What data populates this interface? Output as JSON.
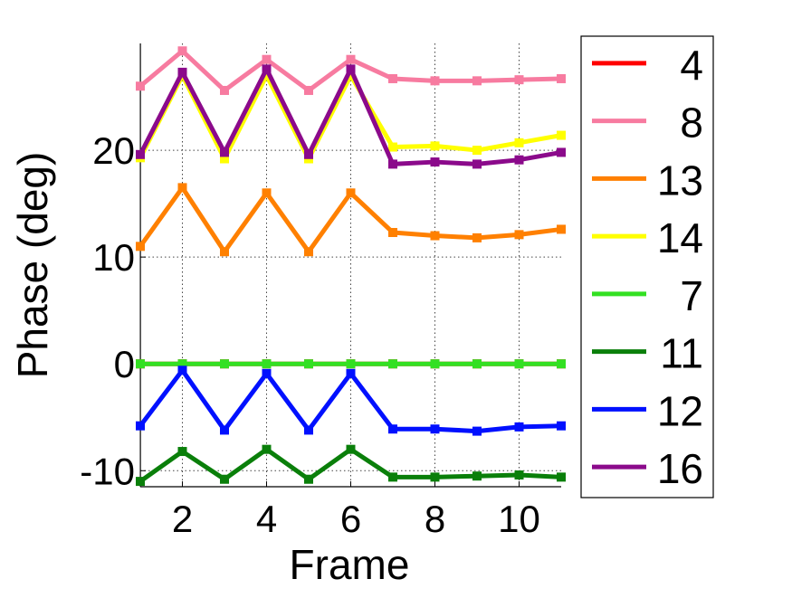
{
  "chart_data": {
    "type": "line",
    "title": "",
    "xlabel": "Frame",
    "ylabel": "Phase (deg)",
    "xlim": [
      1,
      11
    ],
    "ylim": [
      -11.5,
      30
    ],
    "xticks": [
      2,
      4,
      6,
      8,
      10
    ],
    "yticks": [
      -10,
      0,
      10,
      20
    ],
    "grid": true,
    "legend_position": "right",
    "x": [
      1,
      2,
      3,
      4,
      5,
      6,
      7,
      8,
      9,
      10,
      11
    ],
    "series": [
      {
        "name": "4",
        "color": "#ff0000",
        "values": [
          0,
          0,
          0,
          0,
          0,
          0,
          0,
          0,
          0,
          0,
          0
        ]
      },
      {
        "name": "8",
        "color": "#f77ba0",
        "values": [
          26.0,
          29.3,
          25.6,
          28.5,
          25.6,
          28.5,
          26.7,
          26.5,
          26.5,
          26.6,
          26.7
        ]
      },
      {
        "name": "13",
        "color": "#ff8000",
        "values": [
          11.0,
          16.5,
          10.5,
          16.0,
          10.5,
          16.0,
          12.3,
          12.0,
          11.8,
          12.1,
          12.6
        ]
      },
      {
        "name": "14",
        "color": "#ffff00",
        "values": [
          19.3,
          27.0,
          19.2,
          27.0,
          19.2,
          27.0,
          20.3,
          20.4,
          20.0,
          20.7,
          21.4
        ]
      },
      {
        "name": "7",
        "color": "#33e022",
        "values": [
          0,
          0,
          0,
          0,
          0,
          0,
          0,
          0,
          0,
          0,
          0
        ]
      },
      {
        "name": "11",
        "color": "#0a7f0a",
        "values": [
          -11.0,
          -8.2,
          -10.8,
          -8.0,
          -10.8,
          -8.0,
          -10.6,
          -10.6,
          -10.5,
          -10.4,
          -10.6
        ]
      },
      {
        "name": "12",
        "color": "#0010ff",
        "values": [
          -5.8,
          -0.6,
          -6.2,
          -0.9,
          -6.2,
          -0.9,
          -6.1,
          -6.1,
          -6.3,
          -5.9,
          -5.8
        ]
      },
      {
        "name": "16",
        "color": "#8b0a8b",
        "values": [
          19.6,
          27.3,
          19.8,
          27.6,
          19.6,
          27.6,
          18.7,
          18.9,
          18.7,
          19.1,
          19.8
        ]
      }
    ]
  }
}
